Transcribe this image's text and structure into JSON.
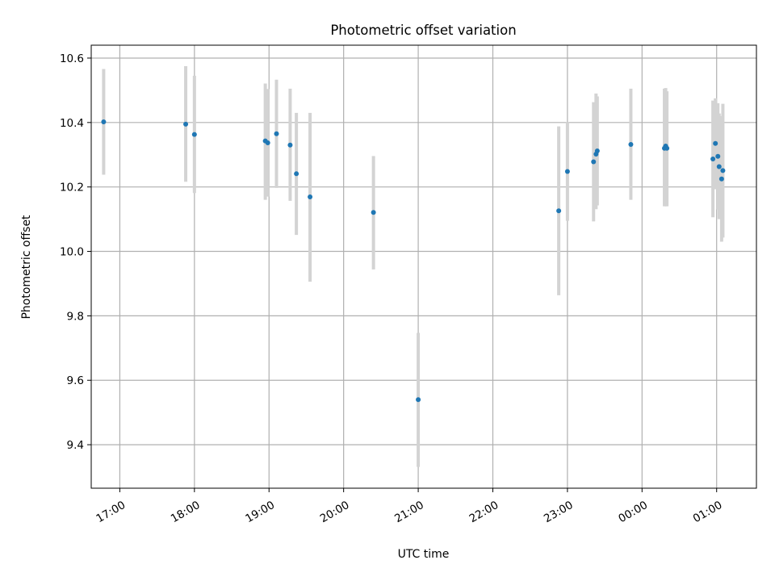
{
  "chart_data": {
    "type": "scatter",
    "title": "Photometric offset variation",
    "xlabel": "UTC time",
    "ylabel": "Photometric offset",
    "x_axis": {
      "start": "2023-01-01T16:37",
      "end": "2023-01-02T01:32",
      "ticks": [
        {
          "at": "2023-01-01T17:00",
          "label": "17:00"
        },
        {
          "at": "2023-01-01T18:00",
          "label": "18:00"
        },
        {
          "at": "2023-01-01T19:00",
          "label": "19:00"
        },
        {
          "at": "2023-01-01T20:00",
          "label": "20:00"
        },
        {
          "at": "2023-01-01T21:00",
          "label": "21:00"
        },
        {
          "at": "2023-01-01T22:00",
          "label": "22:00"
        },
        {
          "at": "2023-01-01T23:00",
          "label": "23:00"
        },
        {
          "at": "2023-01-02T00:00",
          "label": "00:00"
        },
        {
          "at": "2023-01-02T01:00",
          "label": "01:00"
        }
      ]
    },
    "ylim": [
      9.265,
      10.64
    ],
    "yticks": [
      "9.4",
      "9.6",
      "9.8",
      "10.0",
      "10.2",
      "10.4",
      "10.6"
    ],
    "grid": true,
    "colors": {
      "point": "#1f77b4",
      "errorbar": "#d3d3d3",
      "grid": "#b0b0b0"
    },
    "points": [
      {
        "t": "2023-01-01T16:47",
        "y": 10.402,
        "lo": 10.238,
        "hi": 10.566
      },
      {
        "t": "2023-01-01T17:53",
        "y": 10.395,
        "lo": 10.216,
        "hi": 10.575
      },
      {
        "t": "2023-01-01T18:00",
        "y": 10.363,
        "lo": 10.181,
        "hi": 10.545
      },
      {
        "t": "2023-01-01T18:57",
        "y": 10.343,
        "lo": 10.16,
        "hi": 10.521
      },
      {
        "t": "2023-01-01T18:59",
        "y": 10.337,
        "lo": 10.17,
        "hi": 10.504
      },
      {
        "t": "2023-01-01T19:06",
        "y": 10.365,
        "lo": 10.197,
        "hi": 10.533
      },
      {
        "t": "2023-01-01T19:17",
        "y": 10.33,
        "lo": 10.157,
        "hi": 10.505
      },
      {
        "t": "2023-01-01T19:22",
        "y": 10.241,
        "lo": 10.051,
        "hi": 10.43
      },
      {
        "t": "2023-01-01T19:33",
        "y": 10.169,
        "lo": 9.906,
        "hi": 10.43
      },
      {
        "t": "2023-01-01T20:24",
        "y": 10.121,
        "lo": 9.944,
        "hi": 10.296
      },
      {
        "t": "2023-01-01T21:00",
        "y": 9.54,
        "lo": 9.331,
        "hi": 9.747
      },
      {
        "t": "2023-01-01T22:53",
        "y": 10.126,
        "lo": 9.864,
        "hi": 10.388
      },
      {
        "t": "2023-01-01T23:00",
        "y": 10.248,
        "lo": 10.095,
        "hi": 10.401
      },
      {
        "t": "2023-01-01T23:21",
        "y": 10.278,
        "lo": 10.093,
        "hi": 10.463
      },
      {
        "t": "2023-01-01T23:23",
        "y": 10.302,
        "lo": 10.131,
        "hi": 10.49
      },
      {
        "t": "2023-01-01T23:24",
        "y": 10.312,
        "lo": 10.143,
        "hi": 10.481
      },
      {
        "t": "2023-01-01T23:51",
        "y": 10.332,
        "lo": 10.16,
        "hi": 10.505
      },
      {
        "t": "2023-01-02T00:18",
        "y": 10.32,
        "lo": 10.14,
        "hi": 10.505
      },
      {
        "t": "2023-01-02T00:19",
        "y": 10.327,
        "lo": 10.14,
        "hi": 10.507
      },
      {
        "t": "2023-01-02T00:20",
        "y": 10.32,
        "lo": 10.14,
        "hi": 10.497
      },
      {
        "t": "2023-01-02T00:57",
        "y": 10.287,
        "lo": 10.106,
        "hi": 10.468
      },
      {
        "t": "2023-01-02T00:59",
        "y": 10.335,
        "lo": 10.193,
        "hi": 10.475
      },
      {
        "t": "2023-01-02T01:01",
        "y": 10.295,
        "lo": 10.13,
        "hi": 10.46
      },
      {
        "t": "2023-01-02T01:02",
        "y": 10.263,
        "lo": 10.1,
        "hi": 10.428
      },
      {
        "t": "2023-01-02T01:04",
        "y": 10.225,
        "lo": 10.03,
        "hi": 10.42
      },
      {
        "t": "2023-01-02T01:05",
        "y": 10.251,
        "lo": 10.043,
        "hi": 10.458
      }
    ]
  }
}
